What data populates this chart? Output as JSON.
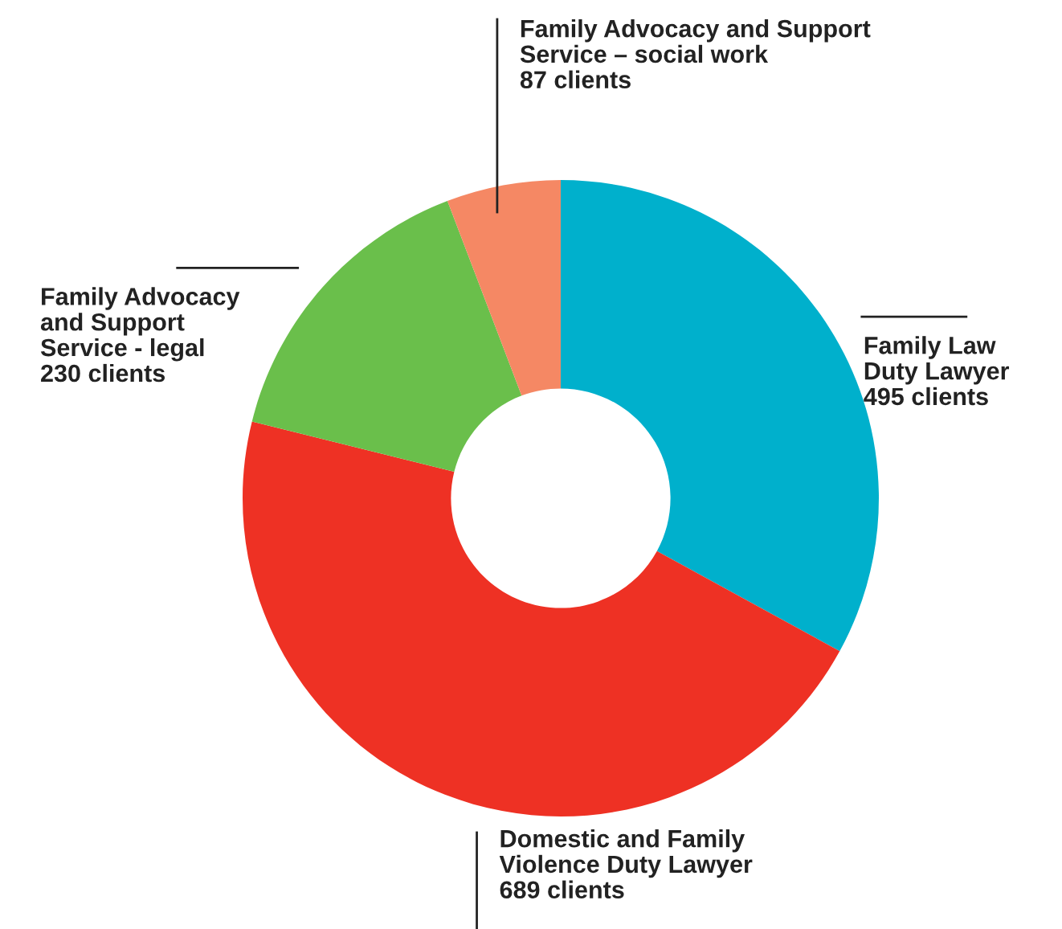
{
  "chart_data": {
    "type": "donut",
    "categories": [
      "Family Law\nDuty Lawyer",
      "Domestic and Family\nViolence Duty Lawyer",
      "Family Advocacy\nand Support\nService - legal",
      "Family Advocacy and Support\nService – social work"
    ],
    "values": [
      495,
      689,
      230,
      87
    ],
    "value_labels": [
      "495 clients",
      "689 clients",
      "230 clients",
      "87 clients"
    ],
    "colors": [
      "#00b0cc",
      "#ee3124",
      "#6abf4b",
      "#f58864"
    ]
  }
}
